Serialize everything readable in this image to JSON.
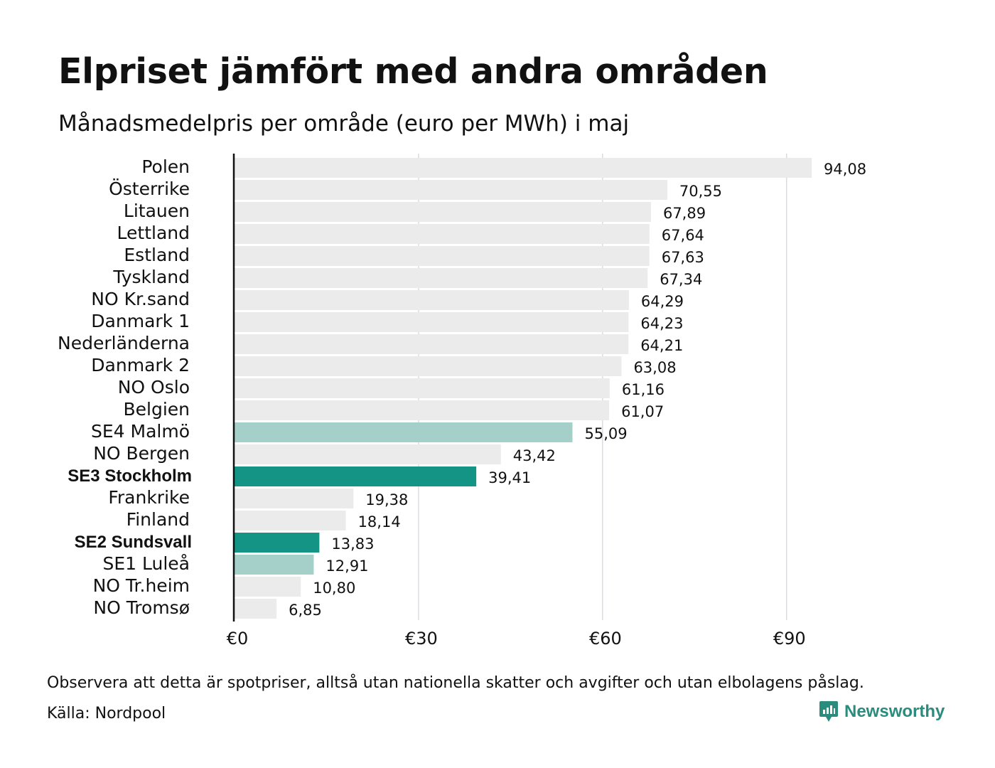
{
  "header": {
    "title": "Elpriset jämfört med andra områden",
    "subtitle": "Månadsmedelpris per område (euro per MWh) i maj"
  },
  "footer": {
    "note": "Observera att detta är spotpriser, alltså utan nationella skatter och avgifter och utan elbolagens påslag.",
    "source": "Källa: Nordpool",
    "brand": "Newsworthy"
  },
  "colors": {
    "default": "#ebebeb",
    "highlight": "#149485",
    "light_highlight": "#a5cfc9",
    "grid": "#c9c9d3",
    "axis": "#111111"
  },
  "chart_data": {
    "type": "bar",
    "orientation": "horizontal",
    "xlim": [
      0,
      94.08
    ],
    "xticks": [
      0,
      30,
      60,
      90
    ],
    "xtick_labels": [
      "€0",
      "€30",
      "€60",
      "€90"
    ],
    "grid": true,
    "categories": [
      "Polen",
      "Österrike",
      "Litauen",
      "Lettland",
      "Estland",
      "Tyskland",
      "NO Kr.sand",
      "Danmark  1",
      "Nederländerna",
      "Danmark  2",
      "NO Oslo",
      "Belgien",
      "SE4  Malmö",
      "NO Bergen",
      "SE3 Stockholm",
      "Frankrike",
      "Finland",
      "SE2 Sundsvall",
      "SE1  Luleå",
      "NO Tr.heim",
      "NO Tromsø"
    ],
    "values": [
      94.08,
      70.55,
      67.89,
      67.64,
      67.63,
      67.34,
      64.29,
      64.23,
      64.21,
      63.08,
      61.16,
      61.07,
      55.09,
      43.42,
      39.41,
      19.38,
      18.14,
      13.83,
      12.91,
      10.8,
      6.85
    ],
    "value_labels": [
      "94,08",
      "70,55",
      "67,89",
      "67,64",
      "67,63",
      "67,34",
      "64,29",
      "64,23",
      "64,21",
      "63,08",
      "61,16",
      "61,07",
      "55,09",
      "43,42",
      "39,41",
      "19,38",
      "18,14",
      "13,83",
      "12,91",
      "10,80",
      "6,85"
    ],
    "bar_styles": [
      "default",
      "default",
      "default",
      "default",
      "default",
      "default",
      "default",
      "default",
      "default",
      "default",
      "default",
      "default",
      "light_highlight",
      "default",
      "highlight",
      "default",
      "default",
      "highlight",
      "light_highlight",
      "default",
      "default"
    ],
    "bold_categories": [
      "SE3 Stockholm",
      "SE2 Sundsvall"
    ]
  }
}
